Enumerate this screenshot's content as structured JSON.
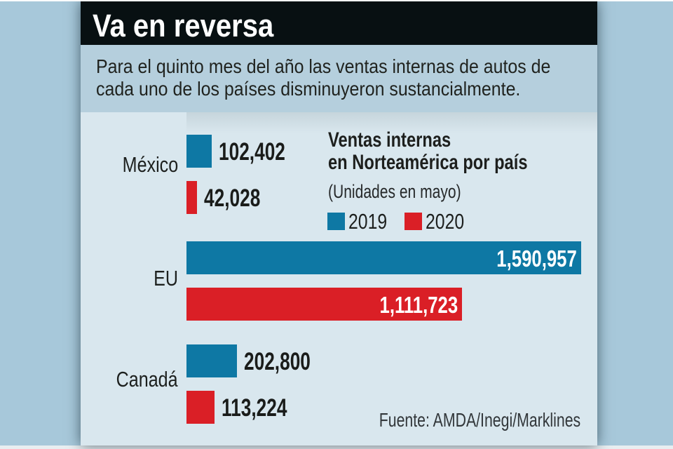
{
  "title": "Va en reversa",
  "subtitle": {
    "lines": [
      "Para el quinto mes del año las ventas internas de autos de",
      "cada uno de los países disminuyeron sustancialmente."
    ]
  },
  "source": "Fuente: AMDA/Inegi/Marklines",
  "colors": {
    "outer_background": "#a7c8da",
    "band_background": "#b5cfdd",
    "panel_background": "#d9e7ee",
    "title_bar": "#081012",
    "series_2019": "#0e78a4",
    "series_2020": "#da1f26",
    "text_dark": "#1d201e",
    "value_text_inside": "#ffffff"
  },
  "chart_data": {
    "type": "bar",
    "orientation": "horizontal",
    "title_lines": [
      "Ventas internas",
      "en Norteamérica por país"
    ],
    "units_note": "(Unidades en mayo)",
    "categories": [
      "México",
      "EU",
      "Canadá"
    ],
    "series": [
      {
        "name": "2019",
        "color": "#0e78a4",
        "values": [
          102402,
          1590957,
          202800
        ],
        "value_labels": [
          "102,402",
          "1,590,957",
          "202,800"
        ]
      },
      {
        "name": "2020",
        "color": "#da1f26",
        "values": [
          42028,
          1111723,
          113224
        ],
        "value_labels": [
          "42,028",
          "1,111,723",
          "113,224"
        ]
      }
    ],
    "xmax": 1590957,
    "legend_position": "right-of-first-bars",
    "grid": false
  }
}
